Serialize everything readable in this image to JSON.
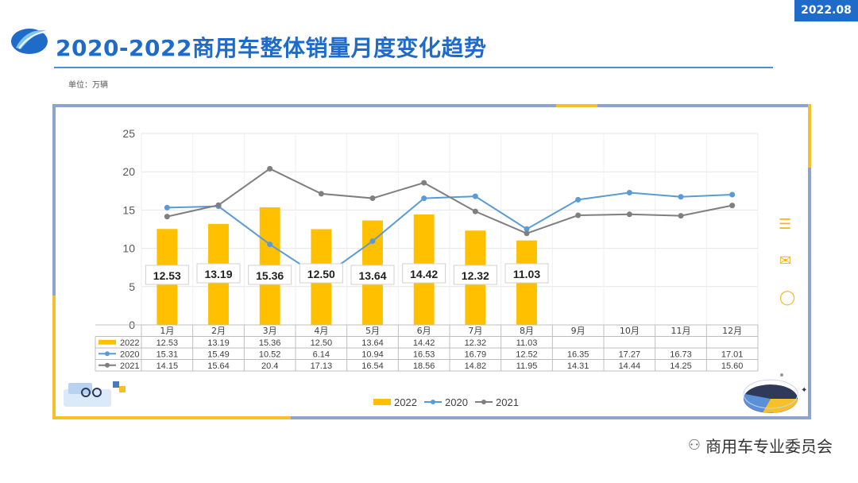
{
  "header": {
    "date_badge": "2022.08",
    "title": "2020-2022商用车整体销量月度变化趋势",
    "unit": "单位：万辆"
  },
  "footer": {
    "watermark": "商用车专业委员会"
  },
  "colors": {
    "s2022": "#FFC000",
    "s2020": "#5B9BD5",
    "s2021": "#7F7F7F",
    "accent": "#1f6bc9"
  },
  "chart_data": {
    "type": "bar",
    "categories": [
      "1月",
      "2月",
      "3月",
      "4月",
      "5月",
      "6月",
      "7月",
      "8月",
      "9月",
      "10月",
      "11月",
      "12月"
    ],
    "ylim": [
      0,
      25
    ],
    "yticks": [
      0,
      5,
      10,
      15,
      20,
      25
    ],
    "grid": true,
    "legend_position": "bottom",
    "series": [
      {
        "name": "2022",
        "type": "bar",
        "values": [
          12.53,
          13.19,
          15.36,
          12.5,
          13.64,
          14.42,
          12.32,
          11.03,
          null,
          null,
          null,
          null
        ],
        "labels": [
          "12.53",
          "13.19",
          "15.36",
          "12.50",
          "13.64",
          "14.42",
          "12.32",
          "11.03",
          "",
          "",
          "",
          ""
        ]
      },
      {
        "name": "2020",
        "type": "line",
        "values": [
          15.31,
          15.49,
          10.52,
          6.14,
          10.94,
          16.53,
          16.79,
          12.52,
          16.35,
          17.27,
          16.73,
          17.01
        ],
        "labels": [
          "15.31",
          "15.49",
          "10.52",
          "6.14",
          "10.94",
          "16.53",
          "16.79",
          "12.52",
          "16.35",
          "17.27",
          "16.73",
          "17.01"
        ]
      },
      {
        "name": "2021",
        "type": "line",
        "values": [
          14.15,
          15.64,
          20.4,
          17.13,
          16.54,
          18.56,
          14.82,
          11.95,
          14.31,
          14.44,
          14.25,
          15.6
        ],
        "labels": [
          "14.15",
          "15.64",
          "20.4",
          "17.13",
          "16.54",
          "18.56",
          "14.82",
          "11.95",
          "14.31",
          "14.44",
          "14.25",
          "15.60"
        ]
      }
    ]
  }
}
